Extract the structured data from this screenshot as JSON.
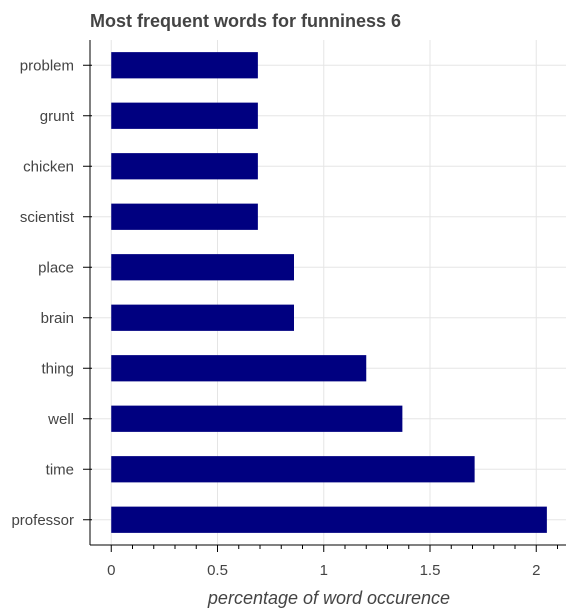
{
  "chart_data": {
    "type": "bar",
    "orientation": "horizontal",
    "title": "Most frequent words for funniness 6",
    "xlabel": "percentage of word occurence",
    "ylabel": "",
    "categories": [
      "professor",
      "time",
      "well",
      "thing",
      "brain",
      "place",
      "scientist",
      "chicken",
      "grunt",
      "problem"
    ],
    "values": [
      2.05,
      1.71,
      1.37,
      1.2,
      0.86,
      0.86,
      0.69,
      0.69,
      0.69,
      0.69
    ],
    "xlim": [
      -0.1,
      2.14
    ],
    "xticks": [
      "0",
      "0.5",
      "1",
      "1.5",
      "2"
    ],
    "grid": true,
    "bar_color": "#000080"
  }
}
